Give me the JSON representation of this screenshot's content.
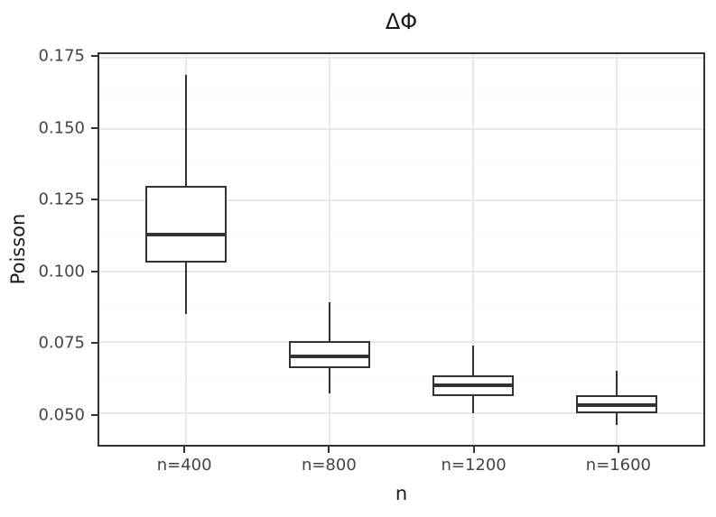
{
  "chart_data": {
    "type": "boxplot",
    "title": "ΔΦ",
    "xlabel": "n",
    "ylabel": "Poisson",
    "categories": [
      "n=400",
      "n=800",
      "n=1200",
      "n=1600"
    ],
    "series": [
      {
        "category": "n=400",
        "whisker_low": 0.085,
        "q1": 0.103,
        "median": 0.113,
        "q3": 0.13,
        "whisker_high": 0.169
      },
      {
        "category": "n=800",
        "whisker_low": 0.057,
        "q1": 0.066,
        "median": 0.07,
        "q3": 0.0755,
        "whisker_high": 0.089
      },
      {
        "category": "n=1200",
        "whisker_low": 0.05,
        "q1": 0.056,
        "median": 0.06,
        "q3": 0.0635,
        "whisker_high": 0.074
      },
      {
        "category": "n=1600",
        "whisker_low": 0.046,
        "q1": 0.05,
        "median": 0.053,
        "q3": 0.0565,
        "whisker_high": 0.065
      }
    ],
    "y_ticks": [
      0.05,
      0.075,
      0.1,
      0.125,
      0.15,
      0.175
    ],
    "y_minor_gridlines": [
      0.0625,
      0.0875,
      0.1125,
      0.1375,
      0.1625
    ],
    "ylim": [
      0.039,
      0.1763
    ],
    "y_tick_decimals": 3,
    "grid": true,
    "legend": "none"
  },
  "theme": {
    "background": "#ffffff",
    "panel_border": "#333333",
    "grid_major": "#e8e8e8",
    "grid_minor": "#f4f4f4",
    "box_stroke": "#333333",
    "box_fill": "#ffffff",
    "tick_label_color": "#444444",
    "axis_title_color": "#1a1a1a",
    "title_color": "#1a1a1a"
  }
}
